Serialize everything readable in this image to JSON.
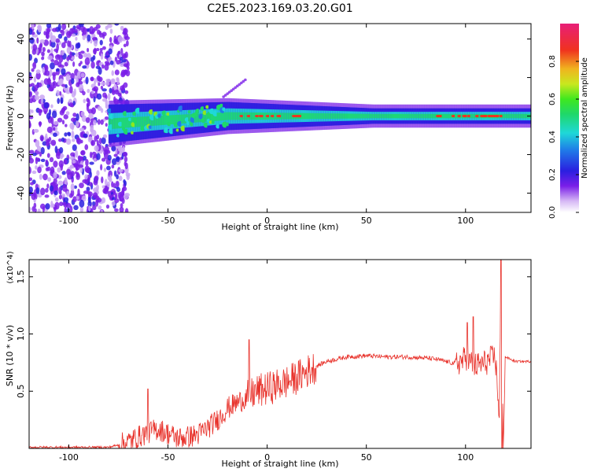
{
  "title": "C2E5.2023.169.03.20.G01",
  "chart_data": [
    {
      "type": "heatmap",
      "xlabel": "Height of straight line (km)",
      "ylabel": "Frequency (Hz)",
      "xlim": [
        -120,
        133
      ],
      "ylim": [
        -50,
        48
      ],
      "x_ticks": [
        -100,
        -50,
        0,
        50,
        100
      ],
      "y_ticks": [
        -40,
        -20,
        0,
        20,
        40
      ],
      "colorbar": {
        "label": "Normalized spectral amplitude",
        "range": [
          0,
          1
        ],
        "ticks": [
          "0.0",
          "0.2",
          "0.4",
          "0.6",
          "0.8"
        ]
      },
      "features": {
        "noise_region_x": [
          -120,
          -75
        ],
        "band_center_frequency_hz": 0,
        "band_start_x": -80,
        "band_halfwidth_start_hz": 10,
        "band_halfwidth_end_hz": 4,
        "peak_amplitude_x": [
          85,
          120
        ]
      }
    },
    {
      "type": "line",
      "xlabel": "Height of straight line (km)",
      "ylabel": "SNR (10 * v/v)",
      "y_multiplier": "(x10^4)",
      "xlim": [
        -120,
        133
      ],
      "ylim": [
        0,
        1.65
      ],
      "x_ticks": [
        -100,
        -50,
        0,
        50,
        100
      ],
      "y_ticks": [
        0.5,
        1.0,
        1.5
      ],
      "y_tick_labels": [
        "0.5",
        "1.0",
        "1.5"
      ],
      "series": [
        {
          "color": "#e8322b",
          "x": [
            -120,
            -100,
            -80,
            -75,
            -70,
            -65,
            -60,
            -55,
            -50,
            -45,
            -40,
            -35,
            -30,
            -25,
            -20,
            -15,
            -10,
            -5,
            0,
            5,
            10,
            15,
            20,
            25,
            30,
            35,
            40,
            50,
            60,
            70,
            80,
            85,
            90,
            95,
            100,
            105,
            110,
            115,
            117,
            118,
            119,
            120,
            125,
            133
          ],
          "y": [
            0.01,
            0.01,
            0.01,
            0.03,
            0.06,
            0.1,
            0.14,
            0.17,
            0.13,
            0.09,
            0.1,
            0.12,
            0.18,
            0.25,
            0.35,
            0.4,
            0.45,
            0.5,
            0.52,
            0.55,
            0.58,
            0.62,
            0.67,
            0.72,
            0.76,
            0.78,
            0.8,
            0.81,
            0.8,
            0.8,
            0.79,
            0.78,
            0.76,
            0.74,
            0.78,
            0.72,
            0.75,
            0.8,
            0.3,
            1.65,
            0.0,
            0.8,
            0.76,
            0.76
          ]
        }
      ],
      "spikes": [
        {
          "x": -60,
          "y": 0.52
        },
        {
          "x": -9,
          "y": 0.95
        },
        {
          "x": 101,
          "y": 1.1
        },
        {
          "x": 104,
          "y": 1.15
        },
        {
          "x": 118,
          "y": 1.65
        },
        {
          "x": 118.5,
          "y": 0.0
        }
      ]
    }
  ]
}
